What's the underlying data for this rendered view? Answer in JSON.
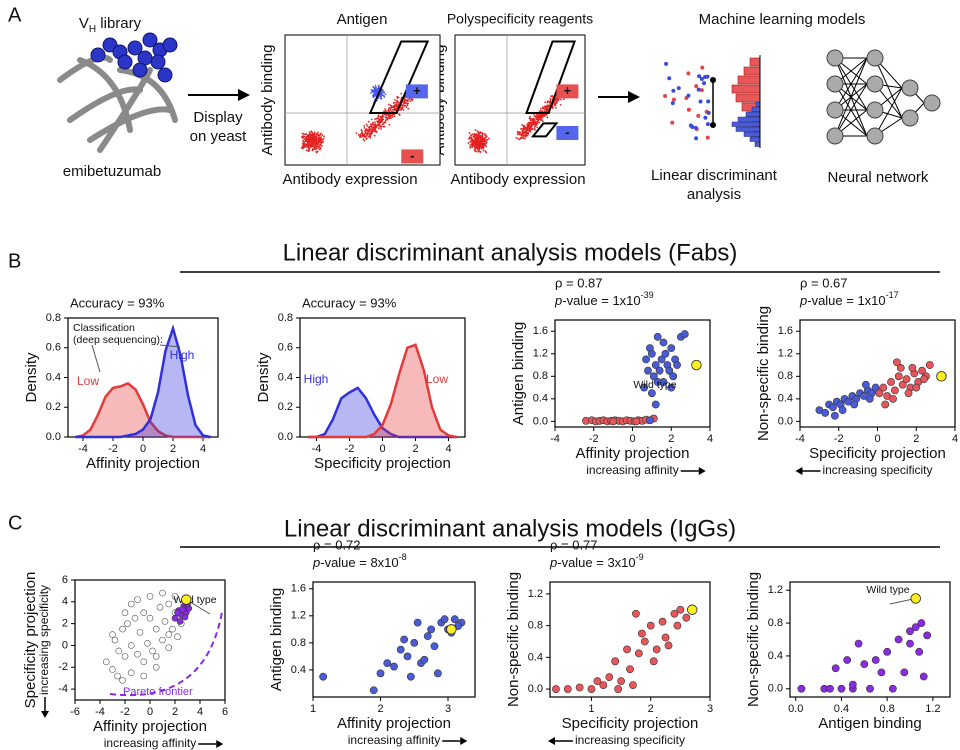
{
  "figure": {
    "panel_labels": [
      "A",
      "B",
      "C"
    ],
    "panel_a": {
      "library": {
        "main": "V",
        "sub": "H",
        "rest": " library"
      },
      "protein": "emibetuzumab",
      "display": [
        "Display",
        "on yeast"
      ],
      "antigen_title": "Antigen",
      "poly_title": "Polyspecificity reagents",
      "ylabel": "Antibody binding",
      "xlabel": "Antibody expression",
      "plus": "+",
      "minus": "-",
      "ml_title": "Machine learning models",
      "lda": [
        "Linear discriminant",
        "analysis"
      ],
      "nn": "Neural network"
    },
    "panel_b_title": "Linear discriminant analysis models (Fabs)",
    "panel_c_title": "Linear discriminant analysis models (IgGs)"
  },
  "chart_data": [
    {
      "type": "line",
      "fill": true,
      "annotation": "Accuracy = 93%",
      "note": [
        "Classification",
        "(deep sequencing):"
      ],
      "xlabel": "Affinity projection",
      "ylabel": "Density",
      "xlim": [
        -5,
        5
      ],
      "ylim": [
        0,
        0.8
      ],
      "xticks": [
        -4,
        -2,
        0,
        2,
        4
      ],
      "yticks": [
        {
          "value": 0,
          "label": "0.0"
        },
        0.2,
        0.4,
        0.6,
        0.8
      ],
      "x": [
        -4.5,
        -4,
        -3.5,
        -3,
        -2.5,
        -2,
        -1.5,
        -1,
        -0.5,
        0,
        0.5,
        1,
        1.5,
        2,
        2.5,
        3,
        3.5,
        4,
        4.5
      ],
      "series": [
        {
          "name": "Low",
          "color": "#e53a3a",
          "values": [
            0,
            0.01,
            0.05,
            0.15,
            0.27,
            0.33,
            0.34,
            0.36,
            0.32,
            0.22,
            0.1,
            0.04,
            0.01,
            0,
            0,
            0,
            0,
            0,
            0
          ]
        },
        {
          "name": "High",
          "color": "#3030dd",
          "values": [
            0,
            0,
            0,
            0,
            0,
            0,
            0,
            0.01,
            0.02,
            0.05,
            0.12,
            0.3,
            0.58,
            0.73,
            0.55,
            0.28,
            0.08,
            0.01,
            0
          ]
        }
      ]
    },
    {
      "type": "line",
      "fill": true,
      "annotation": "Accuracy = 93%",
      "xlabel": "Specificity projection",
      "ylabel": "Density",
      "xlim": [
        -5,
        5
      ],
      "ylim": [
        0,
        0.8
      ],
      "xticks": [
        -4,
        -2,
        0,
        2,
        4
      ],
      "yticks": [
        {
          "value": 0,
          "label": "0.0"
        },
        0.2,
        0.4,
        0.6,
        0.8
      ],
      "x": [
        -4.5,
        -4,
        -3.5,
        -3,
        -2.5,
        -2,
        -1.5,
        -1,
        -0.5,
        0,
        0.5,
        1,
        1.5,
        2,
        2.5,
        3,
        3.5,
        4,
        4.5
      ],
      "series": [
        {
          "name": "High",
          "color": "#3030dd",
          "values": [
            0,
            0,
            0.02,
            0.12,
            0.26,
            0.3,
            0.33,
            0.26,
            0.15,
            0.06,
            0.02,
            0,
            0,
            0,
            0,
            0,
            0,
            0,
            0
          ]
        },
        {
          "name": "Low",
          "color": "#e53a3a",
          "values": [
            0,
            0,
            0,
            0,
            0,
            0,
            0,
            0,
            0.02,
            0.08,
            0.22,
            0.42,
            0.6,
            0.62,
            0.45,
            0.2,
            0.05,
            0.01,
            0
          ]
        }
      ]
    },
    {
      "type": "scatter",
      "rho": "ρ = 0.87",
      "pvalue": {
        "p": "p",
        "text": "-value = 1x10",
        "exp": "-39"
      },
      "xlabel": "Affinity projection",
      "xlabel_sub": "increasing affinity",
      "arrow": "right",
      "ylabel": "Antigen binding",
      "xlim": [
        -4,
        4
      ],
      "ylim": [
        -0.1,
        1.8
      ],
      "xticks": [
        -4,
        -2,
        0,
        2,
        4
      ],
      "yticks": [
        {
          "value": 0,
          "label": "0.0"
        },
        0.4,
        0.8,
        1.2,
        1.6
      ],
      "series": [
        {
          "color": "#e8555a",
          "x": [
            -2.4,
            -2.1,
            -1.9,
            -1.7,
            -1.5,
            -1.3,
            -1.1,
            -0.9,
            -0.7,
            -0.5,
            -0.3,
            -0.1,
            0.1,
            0.3,
            0.5,
            0.7,
            0.9,
            1.1,
            -1.0,
            0.2
          ],
          "values": [
            0.01,
            0.02,
            0,
            0.01,
            0.02,
            0,
            0.01,
            0.02,
            0.01,
            0,
            0.02,
            0.01,
            0,
            0.02,
            0.01,
            0.03,
            0.02,
            0.05,
            0,
            0
          ]
        },
        {
          "color": "#4a5bd6",
          "x": [
            0.6,
            0.8,
            0.9,
            1.0,
            1.1,
            1.2,
            1.3,
            1.4,
            1.5,
            1.6,
            1.7,
            1.8,
            1.9,
            2.0,
            2.1,
            2.2,
            2.3,
            2.5,
            2.7,
            0.7,
            1.0,
            1.3,
            1.6,
            2.0,
            1.2,
            0.9
          ],
          "values": [
            0.6,
            0.9,
            1.3,
            1.2,
            0.8,
            1.0,
            1.5,
            0.9,
            1.1,
            0.7,
            1.2,
            1.0,
            0.9,
            1.3,
            0.8,
            1.1,
            1.0,
            1.5,
            1.55,
            1.1,
            0.5,
            0.7,
            1.4,
            0.6,
            0.3,
            0.02
          ]
        }
      ],
      "highlight": {
        "x": 3.3,
        "y": 1.0,
        "label": "Wild type"
      }
    },
    {
      "type": "scatter",
      "rho": "ρ = 0.67",
      "pvalue": {
        "p": "p",
        "text": "-value = 1x10",
        "exp": "-17"
      },
      "xlabel": "Specificity projection",
      "xlabel_sub": "increasing specificity",
      "arrow": "left",
      "ylabel": "Non-specific binding",
      "xlim": [
        -4,
        4
      ],
      "ylim": [
        -0.1,
        1.8
      ],
      "xticks": [
        -4,
        -2,
        0,
        2,
        4
      ],
      "yticks": [
        {
          "value": 0,
          "label": "0.0"
        },
        0.4,
        0.8,
        1.2,
        1.6
      ],
      "series": [
        {
          "color": "#4a5bd6",
          "x": [
            -3.0,
            -2.7,
            -2.5,
            -2.3,
            -2.1,
            -1.9,
            -1.7,
            -1.5,
            -1.3,
            -1.1,
            -0.9,
            -0.7,
            -0.5,
            -0.3,
            -0.1,
            -1.8,
            -1.2,
            -0.6,
            -2.2,
            -0.4
          ],
          "values": [
            0.2,
            0.15,
            0.3,
            0.25,
            0.35,
            0.3,
            0.4,
            0.35,
            0.45,
            0.4,
            0.5,
            0.45,
            0.55,
            0.5,
            0.6,
            0.2,
            0.3,
            0.65,
            0.1,
            0.4
          ]
        },
        {
          "color": "#e8555a",
          "x": [
            0.1,
            0.3,
            0.5,
            0.7,
            0.9,
            1.1,
            1.3,
            1.5,
            1.7,
            1.9,
            2.1,
            2.3,
            2.5,
            2.7,
            0.4,
            0.8,
            1.2,
            1.6,
            2.0,
            2.4,
            1.0,
            1.8
          ],
          "values": [
            0.5,
            0.6,
            0.45,
            0.7,
            0.55,
            0.8,
            0.65,
            0.75,
            0.6,
            0.85,
            0.7,
            0.9,
            0.8,
            1.0,
            0.3,
            0.4,
            0.95,
            0.5,
            0.6,
            0.75,
            1.05,
            0.95
          ]
        }
      ],
      "highlight": {
        "x": 3.3,
        "y": 0.8
      }
    },
    {
      "type": "scatter",
      "xlabel": "Affinity projection",
      "xlabel_sub": "increasing affinity",
      "arrow": "right",
      "ylabel": "Specificity projection",
      "ylabel_sub": "increasing specificity",
      "frontier": "Pareto frontier",
      "xlim": [
        -6,
        6
      ],
      "ylim": [
        -5,
        6
      ],
      "xticks": [
        -6,
        -4,
        -2,
        0,
        2,
        4,
        6
      ],
      "yticks": [
        -4,
        -2,
        0,
        2,
        4,
        6
      ],
      "series": [
        {
          "color": "#ffffff",
          "x": [
            -3.5,
            -3,
            -2.8,
            -2.5,
            -2.2,
            -2,
            -1.8,
            -1.5,
            -1.2,
            -1,
            -0.8,
            -0.5,
            -0.2,
            0,
            0.2,
            0.5,
            0.8,
            1,
            1.2,
            1.5,
            1.8,
            2,
            2.2,
            2.5,
            -2.6,
            -2,
            -1.5,
            -1,
            -0.5,
            0,
            0.5,
            1,
            1.5,
            2,
            -1.5,
            -0.5,
            0.5,
            1.5,
            -3,
            -2.2
          ],
          "values": [
            -1.5,
            -2.2,
            0.5,
            -0.5,
            1.5,
            -1,
            2,
            0,
            2.5,
            -0.8,
            1.2,
            3,
            0.2,
            2.5,
            -0.5,
            1.5,
            3.5,
            0.5,
            2.2,
            -0.2,
            1.5,
            3,
            0.8,
            2,
            -2.8,
            3,
            -2.5,
            4.2,
            -1.5,
            4.5,
            -2,
            4.8,
            1,
            4.5,
            3.8,
            -2.8,
            -1,
            3.8,
            1,
            -3.2
          ]
        },
        {
          "color": "#8a2be2",
          "x": [
            2.0,
            2.3,
            2.5,
            2.7,
            2.9,
            3.1,
            2.4,
            2.8,
            3.0,
            2.2,
            2.6
          ],
          "values": [
            2.5,
            3.2,
            2.8,
            3.6,
            3.0,
            3.4,
            2.2,
            2.6,
            3.8,
            3.0,
            3.3
          ]
        }
      ],
      "highlight": {
        "x": 2.9,
        "y": 4.2,
        "label": "Wild type"
      }
    },
    {
      "type": "scatter",
      "rho": "ρ = 0.72",
      "pvalue": {
        "p": "p",
        "text": "-value = 8x10",
        "exp": "-8"
      },
      "xlabel": "Affinity projection",
      "xlabel_sub": "increasing affinity",
      "arrow": "right",
      "ylabel": "Antigen binding",
      "xlim": [
        1,
        3.4
      ],
      "ylim": [
        0,
        1.7
      ],
      "xticks": [
        1,
        2,
        3
      ],
      "yticks": [
        0.4,
        0.8,
        1.2,
        1.6
      ],
      "series": [
        {
          "color": "#4a5bd6",
          "x": [
            1.15,
            1.9,
            2.0,
            2.1,
            2.2,
            2.3,
            2.4,
            2.5,
            2.6,
            2.7,
            2.8,
            2.9,
            3.0,
            3.1,
            3.2,
            2.45,
            2.65,
            2.85,
            3.05,
            2.55,
            2.75,
            2.35,
            2.95,
            3.15
          ],
          "values": [
            0.3,
            0.1,
            0.35,
            0.5,
            0.45,
            0.7,
            0.6,
            0.8,
            0.5,
            0.9,
            0.75,
            1.1,
            1.0,
            1.15,
            1.1,
            0.3,
            0.55,
            0.35,
            0.95,
            1.1,
            1.0,
            0.85,
            1.15,
            1.05
          ]
        }
      ],
      "highlight": {
        "x": 3.05,
        "y": 1.0
      }
    },
    {
      "type": "scatter",
      "rho": "ρ = 0.77",
      "pvalue": {
        "p": "p",
        "text": "-value = 3x10",
        "exp": "-9"
      },
      "xlabel": "Specificity projection",
      "xlabel_sub": "increasing specificity",
      "arrow": "left",
      "ylabel": "Non-specific binding",
      "xlim": [
        0.3,
        3
      ],
      "ylim": [
        -0.1,
        1.35
      ],
      "xticks": [
        1,
        2,
        3
      ],
      "yticks": [
        {
          "value": 0,
          "label": "0.0"
        },
        0.4,
        0.8,
        1.2
      ],
      "series": [
        {
          "color": "#e8555a",
          "x": [
            0.4,
            0.6,
            0.8,
            1.0,
            1.2,
            1.3,
            1.4,
            1.5,
            1.6,
            1.7,
            1.8,
            1.9,
            2.0,
            2.1,
            2.2,
            2.3,
            2.4,
            2.5,
            2.6,
            1.45,
            1.65,
            1.85,
            2.05,
            2.25,
            2.45,
            1.1,
            1.75
          ],
          "values": [
            0,
            0,
            0.02,
            0,
            0.05,
            0.15,
            0.35,
            0.1,
            0.5,
            0.05,
            0.45,
            0.6,
            0.8,
            0.5,
            0.85,
            0.55,
            0.95,
            1.0,
            0.9,
            0,
            0.25,
            0.7,
            0.35,
            0.65,
            0.8,
            0.1,
            0.95
          ]
        }
      ],
      "highlight": {
        "x": 2.7,
        "y": 1.0
      }
    },
    {
      "type": "scatter",
      "xlabel": "Antigen binding",
      "ylabel": "Non-specific binding",
      "xlim": [
        -0.05,
        1.35
      ],
      "ylim": [
        -0.1,
        1.3
      ],
      "xticks": [
        {
          "value": 0,
          "label": "0.0"
        },
        0.4,
        0.8,
        1.2
      ],
      "yticks": [
        {
          "value": 0,
          "label": "0.0"
        },
        0.4,
        0.8,
        1.2
      ],
      "series": [
        {
          "color": "#8a2be2",
          "x": [
            0.05,
            0.25,
            0.35,
            0.45,
            0.5,
            0.55,
            0.6,
            0.7,
            0.8,
            0.85,
            0.9,
            1.0,
            1.05,
            1.1,
            1.15,
            0.95,
            1.0,
            1.08,
            0.65,
            0.5,
            0.4,
            1.12,
            0.3,
            0.75
          ],
          "values": [
            0,
            0,
            0.25,
            0.35,
            0,
            0.55,
            0.3,
            0.35,
            0.45,
            0,
            0.6,
            0.7,
            0.75,
            0.8,
            0.65,
            0.2,
            0.55,
            0.45,
            0,
            0.05,
            0,
            0.15,
            0,
            0.2
          ]
        }
      ],
      "highlight": {
        "x": 1.05,
        "y": 1.1,
        "label": "Wild type"
      }
    }
  ]
}
